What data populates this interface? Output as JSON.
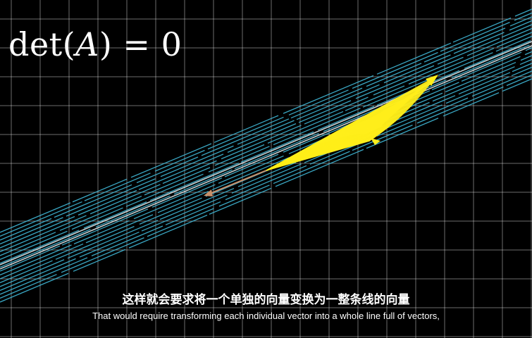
{
  "formula": {
    "prefix": "det(",
    "variable": "A",
    "suffix": ") = 0"
  },
  "subtitles": {
    "chinese": "这样就会要求将一个单独的向量变换为一整条线的向量",
    "english": "That would require transforming each individual vector into a whole line full of vectors,"
  },
  "colors": {
    "background": "#000000",
    "grid": "#ffffff",
    "vector_lines": "#3fb7d6",
    "highlight_line": "#e8f4f8",
    "yellow_vectors": "#ffee1a",
    "short_vector": "#c9906a"
  }
}
